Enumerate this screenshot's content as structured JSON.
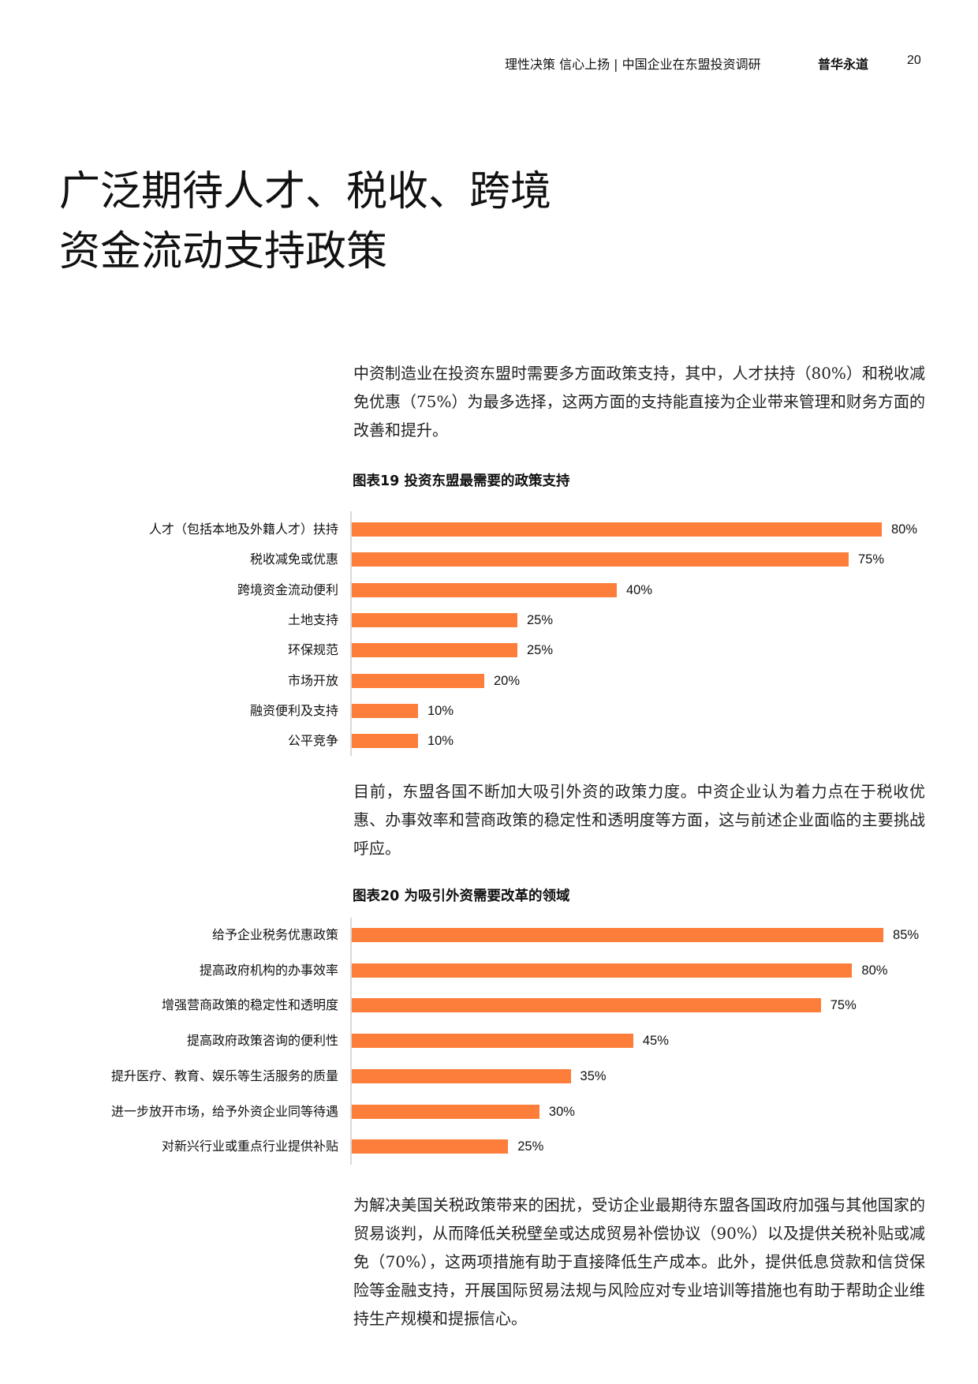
{
  "header": {
    "doc_title": "理性决策 信心上扬 | 中国企业在东盟投资调研",
    "brand": "普华永道",
    "page_number": "20"
  },
  "page_title": {
    "line1": "广泛期待人才、税收、跨境",
    "line2": "资金流动支持政策"
  },
  "paragraphs": [
    "中资制造业在投资东盟时需要多方面政策支持，其中，人才扶持（80%）和税收减免优惠（75%）为最多选择，这两方面的支持能直接为企业带来管理和财务方面的改善和提升。",
    "目前，东盟各国不断加大吸引外资的政策力度。中资企业认为着力点在于税收优惠、办事效率和营商政策的稳定性和透明度等方面，这与前述企业面临的主要挑战呼应。",
    "为解决美国关税政策带来的困扰，受访企业最期待东盟各国政府加强与其他国家的贸易谈判，从而降低关税壁垒或达成贸易补偿协议（90%）以及提供关税补贴或减免（70%），这两项措施有助于直接降低生产成本。此外，提供低息贷款和信贷保险等金融支持，开展国际贸易法规与风险应对专业培训等措施也有助于帮助企业维持生产规模和提振信心。"
  ],
  "colors": {
    "bar": "#FD7E3A",
    "axis": "#D9D9D9"
  },
  "chart_data": [
    {
      "type": "bar",
      "orientation": "horizontal",
      "title": "图表19 投资东盟最需要的政策支持",
      "categories": [
        "人才（包括本地及外籍人才）扶持",
        "税收减免或优惠",
        "跨境资金流动便利",
        "土地支持",
        "环保规范",
        "市场开放",
        "融资便利及支持",
        "公平竞争"
      ],
      "values": [
        80,
        75,
        40,
        25,
        25,
        20,
        10,
        10
      ],
      "labels": [
        "80%",
        "75%",
        "40%",
        "25%",
        "25%",
        "20%",
        "10%",
        "10%"
      ],
      "unit": "%",
      "xlabel": "",
      "ylabel": "",
      "grid": false,
      "legend": null
    },
    {
      "type": "bar",
      "orientation": "horizontal",
      "title": "图表20 为吸引外资需要改革的领域",
      "categories": [
        "给予企业税务优惠政策",
        "提高政府机构的办事效率",
        "增强营商政策的稳定性和透明度",
        "提高政府政策咨询的便利性",
        "提升医疗、教育、娱乐等生活服务的质量",
        "进一步放开市场，给予外资企业同等待遇",
        "对新兴行业或重点行业提供补贴"
      ],
      "values": [
        85,
        80,
        75,
        45,
        35,
        30,
        25
      ],
      "labels": [
        "85%",
        "80%",
        "75%",
        "45%",
        "35%",
        "30%",
        "25%"
      ],
      "unit": "%",
      "xlabel": "",
      "ylabel": "",
      "grid": false,
      "legend": null
    }
  ]
}
